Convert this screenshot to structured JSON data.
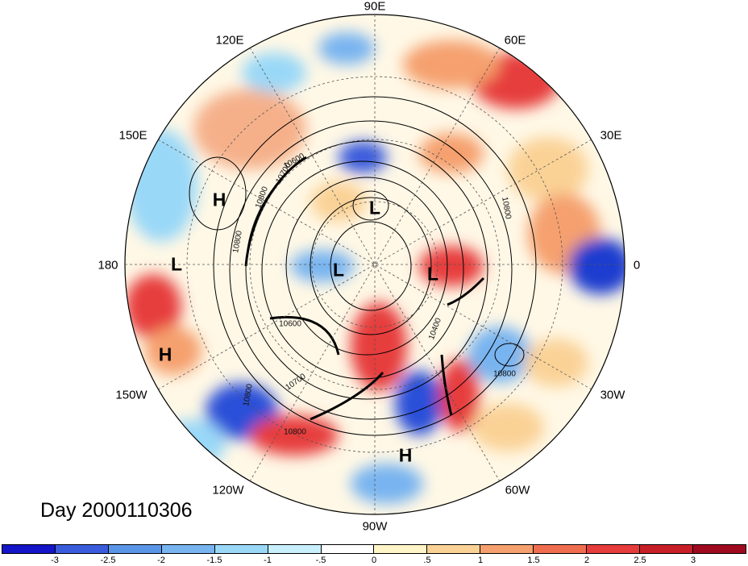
{
  "title": "Day 2000110306",
  "longitude_labels": {
    "n90e": "90E",
    "e60": "60E",
    "e30": "30E",
    "e0": "0",
    "w30": "30W",
    "w60": "60W",
    "w90": "90W",
    "w120": "120W",
    "w150": "150W",
    "e180": "180",
    "e150": "150E",
    "e120": "120E"
  },
  "pressure_centers": [
    {
      "id": "h-north-pacific",
      "label": "H"
    },
    {
      "id": "l-dateline",
      "label": "L"
    },
    {
      "id": "h-south-pacific",
      "label": "H"
    },
    {
      "id": "l-siberia",
      "label": "L"
    },
    {
      "id": "l-arctic",
      "label": "L"
    },
    {
      "id": "l-atlantic",
      "label": "L"
    },
    {
      "id": "h-caribbean",
      "label": "H"
    }
  ],
  "contour_labels": [
    "10800",
    "10800",
    "10700",
    "10600",
    "10800",
    "10700",
    "10800",
    "10400",
    "10800",
    "10600",
    "10800"
  ],
  "colorbar": {
    "colors": [
      "#1414c8",
      "#3a5cdc",
      "#5a96e8",
      "#78b4f0",
      "#9ad8f8",
      "#c8f0fc",
      "#ffffff",
      "#fff5c8",
      "#fad296",
      "#f5a06e",
      "#f06e50",
      "#e63c3c",
      "#c81e28",
      "#a00a1e"
    ],
    "tick_labels": [
      "-3",
      "-2.5",
      "-2",
      "-1.5",
      "-1",
      "-.5",
      "0",
      ".5",
      "1",
      "1.5",
      "2",
      "2.5",
      "3"
    ]
  }
}
